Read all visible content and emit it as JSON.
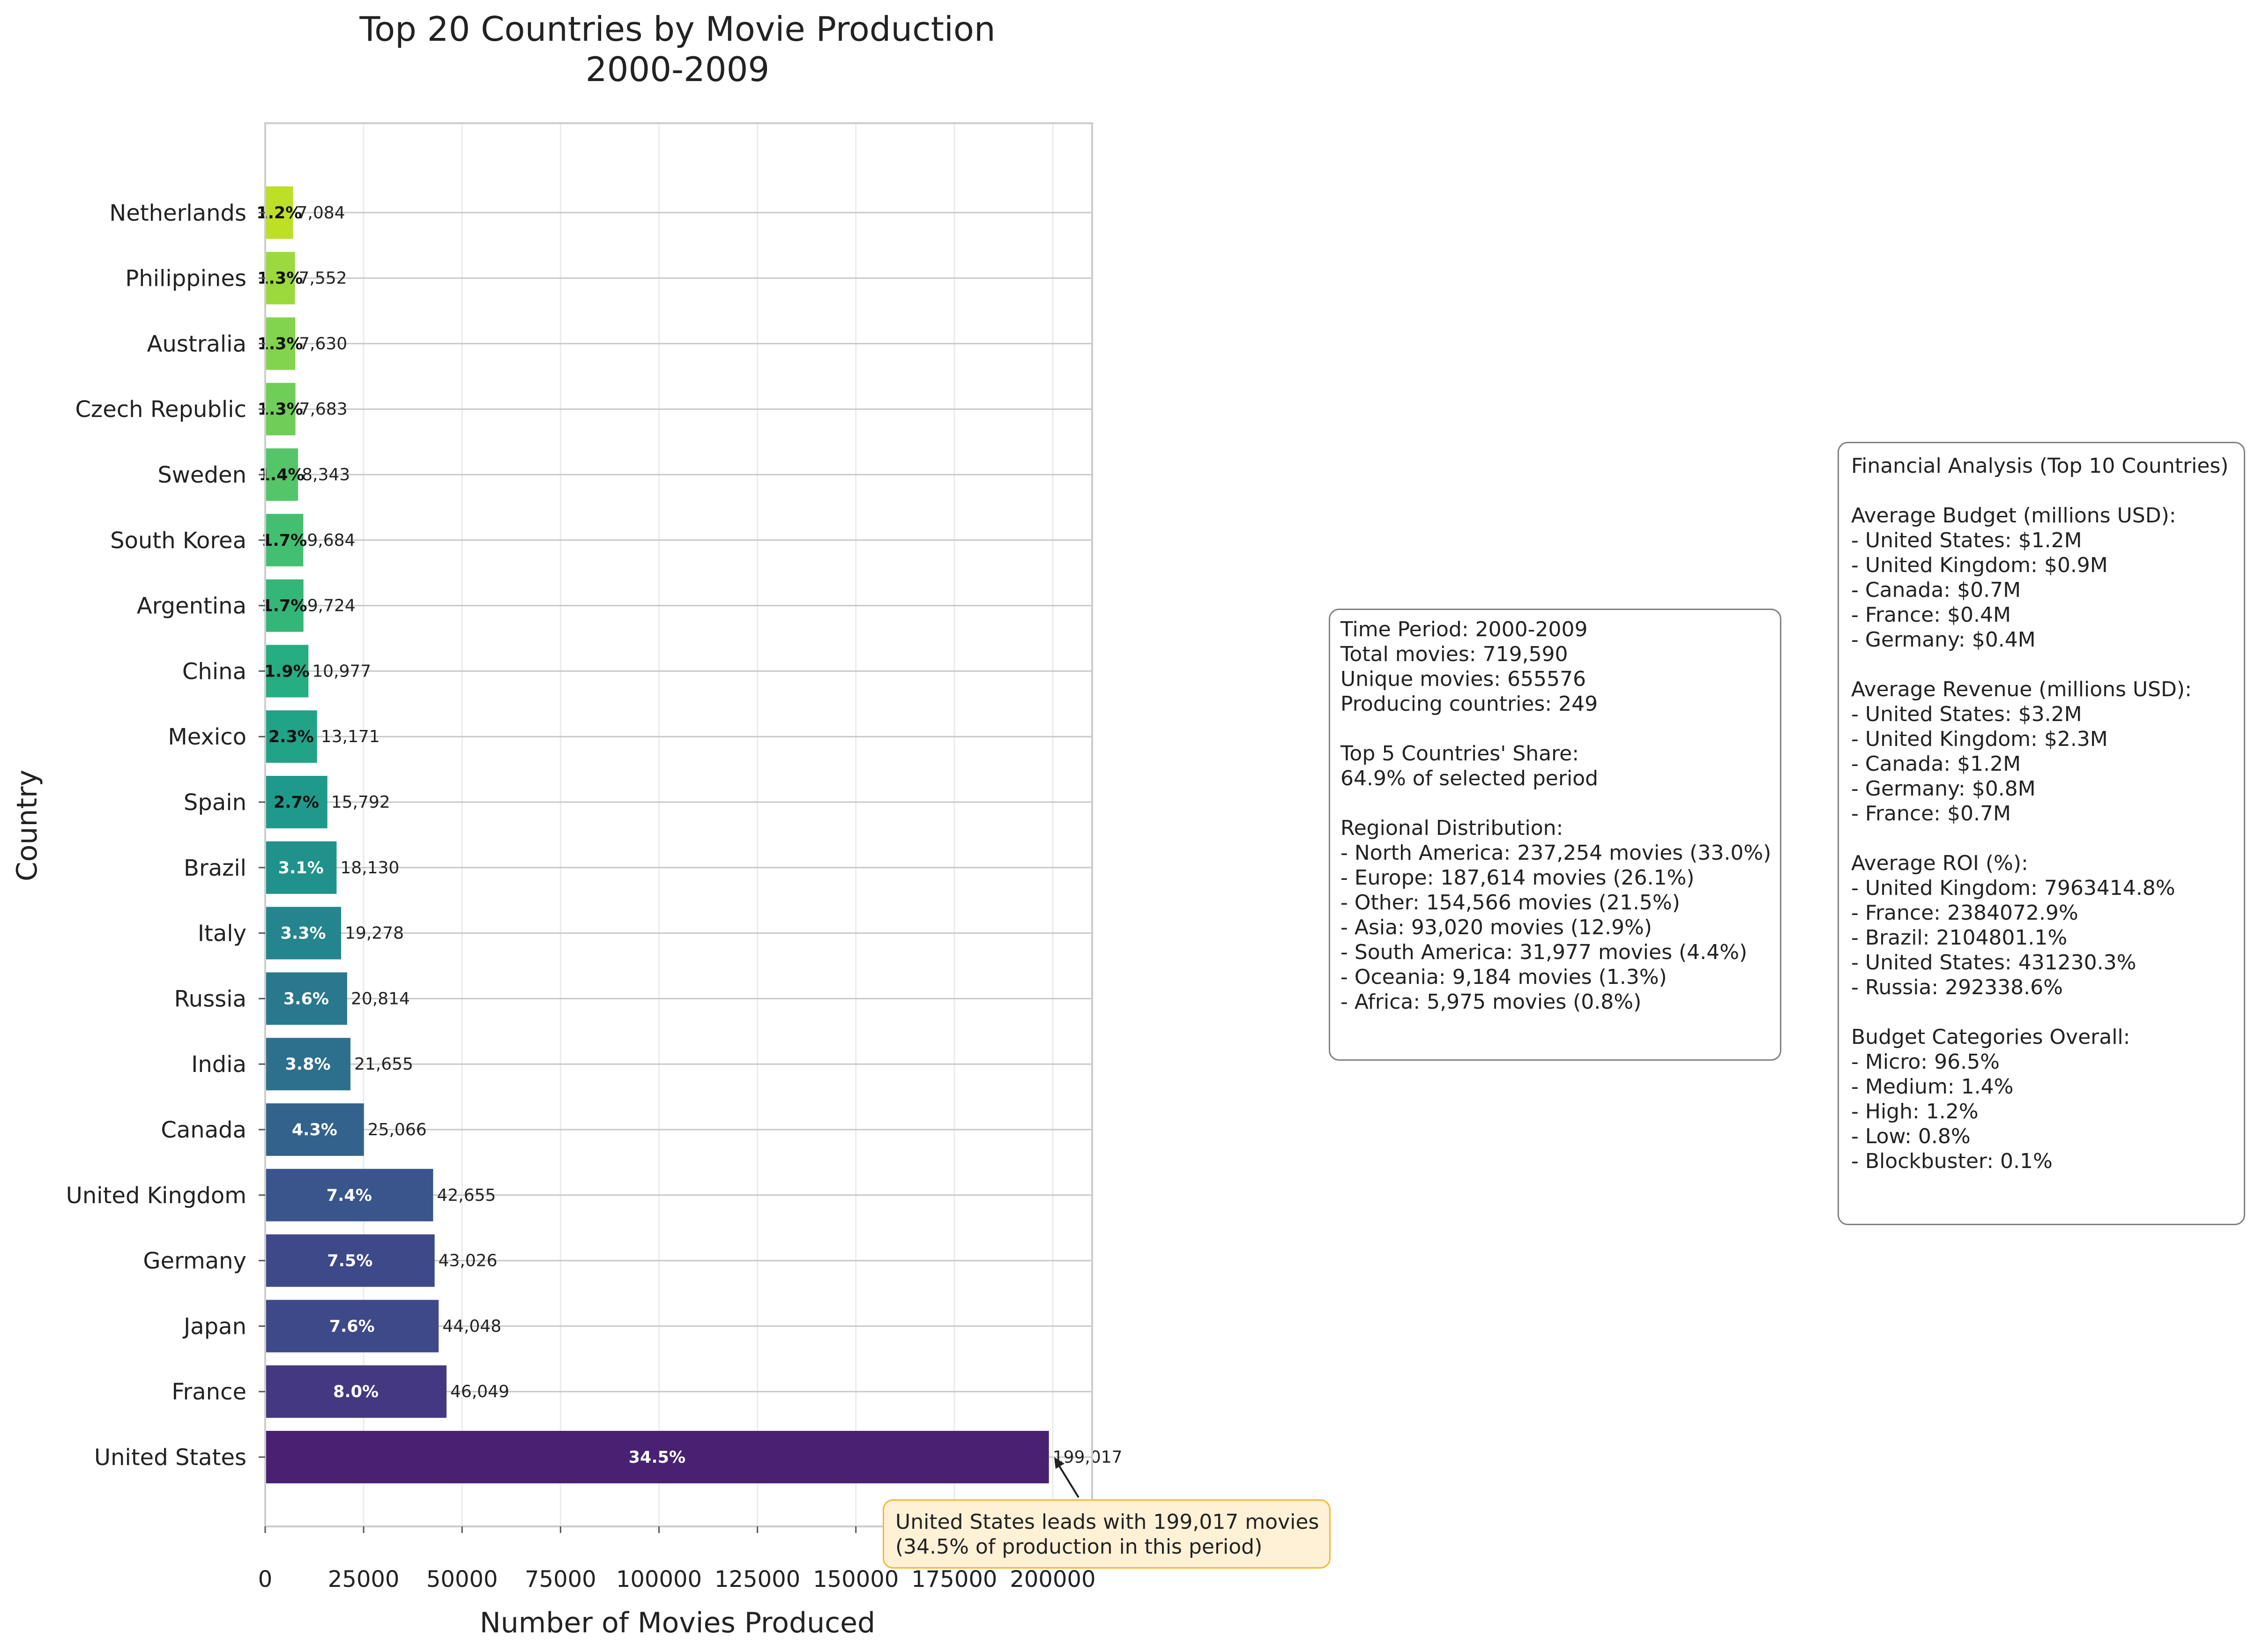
{
  "chart_data": {
    "type": "bar",
    "orientation": "horizontal",
    "title_line1": "Top 20 Countries by Movie Production",
    "title_line2": "2000-2009",
    "xlabel": "Number of Movies Produced",
    "ylabel": "Country",
    "xlim": [
      0,
      210000
    ],
    "xticks": [
      0,
      25000,
      50000,
      75000,
      100000,
      125000,
      150000,
      175000,
      200000
    ],
    "grid": true,
    "categories": [
      "United States",
      "France",
      "Japan",
      "Germany",
      "United Kingdom",
      "Canada",
      "India",
      "Russia",
      "Italy",
      "Brazil",
      "Spain",
      "Mexico",
      "China",
      "Argentina",
      "South Korea",
      "Sweden",
      "Czech Republic",
      "Australia",
      "Philippines",
      "Netherlands"
    ],
    "values": [
      199017,
      46049,
      44048,
      43026,
      42655,
      25066,
      21655,
      20814,
      19278,
      18130,
      15792,
      13171,
      10977,
      9724,
      9684,
      8343,
      7683,
      7630,
      7552,
      7084
    ],
    "value_labels": [
      "199,017",
      "46,049",
      "44,048",
      "43,026",
      "42,655",
      "25,066",
      "21,655",
      "20,814",
      "19,278",
      "18,130",
      "15,792",
      "13,171",
      "10,977",
      "9,724",
      "9,684",
      "8,343",
      "7,683",
      "7,630",
      "7,552",
      "7,084"
    ],
    "percent_labels": [
      "34.5%",
      "8.0%",
      "7.6%",
      "7.5%",
      "7.4%",
      "4.3%",
      "3.8%",
      "3.6%",
      "3.3%",
      "3.1%",
      "2.7%",
      "2.3%",
      "1.9%",
      "1.7%",
      "1.7%",
      "1.4%",
      "1.3%",
      "1.3%",
      "1.3%",
      "1.2%"
    ],
    "bar_colors": [
      "#482173",
      "#453882",
      "#3e4989",
      "#3e4989",
      "#39558c",
      "#33638d",
      "#2d708e",
      "#2a788e",
      "#25858e",
      "#21918c",
      "#1f9a8a",
      "#20a386",
      "#26ad81",
      "#34b679",
      "#43bf71",
      "#54c568",
      "#6ece58",
      "#82d34d",
      "#9bd93c",
      "#bddf26"
    ],
    "percent_text_colors": [
      "#ffffff",
      "#ffffff",
      "#ffffff",
      "#ffffff",
      "#ffffff",
      "#ffffff",
      "#ffffff",
      "#ffffff",
      "#ffffff",
      "#ffffff",
      "#111111",
      "#111111",
      "#111111",
      "#111111",
      "#111111",
      "#111111",
      "#111111",
      "#111111",
      "#111111",
      "#111111"
    ],
    "annotation": {
      "target": "United States",
      "text": "United States leads with 199,017 movies\n(34.5% of production in this period)"
    }
  },
  "summary_box": {
    "text": "Time Period: 2000-2009\nTotal movies: 719,590\nUnique movies: 655576\nProducing countries: 249\n\nTop 5 Countries' Share:\n64.9% of selected period\n\nRegional Distribution:\n- North America: 237,254 movies (33.0%)\n- Europe: 187,614 movies (26.1%)\n- Other: 154,566 movies (21.5%)\n- Asia: 93,020 movies (12.9%)\n- South America: 31,977 movies (4.4%)\n- Oceania: 9,184 movies (1.3%)\n- Africa: 5,975 movies (0.8%)"
  },
  "financial_box": {
    "text": "Financial Analysis (Top 10 Countries)\n\nAverage Budget (millions USD):\n- United States: $1.2M\n- United Kingdom: $0.9M\n- Canada: $0.7M\n- France: $0.4M\n- Germany: $0.4M\n\nAverage Revenue (millions USD):\n- United States: $3.2M\n- United Kingdom: $2.3M\n- Canada: $1.2M\n- Germany: $0.8M\n- France: $0.7M\n\nAverage ROI (%):\n- United Kingdom: 7963414.8%\n- France: 2384072.9%\n- Brazil: 2104801.1%\n- United States: 431230.3%\n- Russia: 292338.6%\n\nBudget Categories Overall:\n- Micro: 96.5%\n- Medium: 1.4%\n- High: 1.2%\n- Low: 0.8%\n- Blockbuster: 0.1%"
  }
}
